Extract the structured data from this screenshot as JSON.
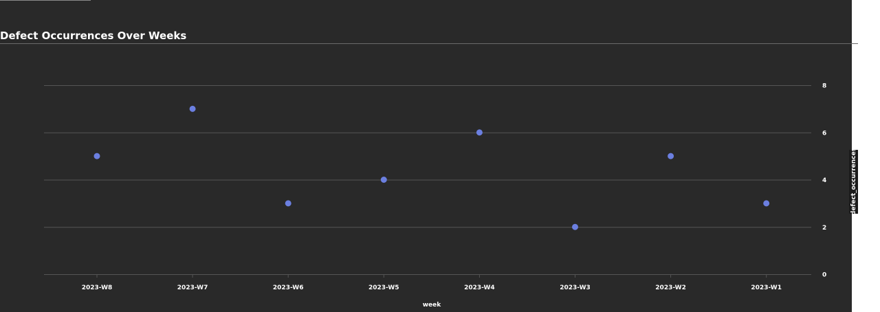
{
  "chart_data": {
    "type": "scatter",
    "title": "Defect Occurrences Over Weeks",
    "xlabel": "week",
    "ylabel": "defect_occurrences",
    "categories": [
      "2023-W8",
      "2023-W7",
      "2023-W6",
      "2023-W5",
      "2023-W4",
      "2023-W3",
      "2023-W2",
      "2023-W1"
    ],
    "values": [
      5,
      7,
      3,
      4,
      6,
      2,
      5,
      3
    ],
    "y_ticks": [
      0,
      2,
      4,
      6,
      8
    ],
    "ylim": [
      0,
      8
    ],
    "y_axis_side": "right",
    "grid": true,
    "colors": {
      "background": "#292929",
      "point": "#6b7fe0",
      "grid": "#555555",
      "text": "#ffffff"
    }
  }
}
